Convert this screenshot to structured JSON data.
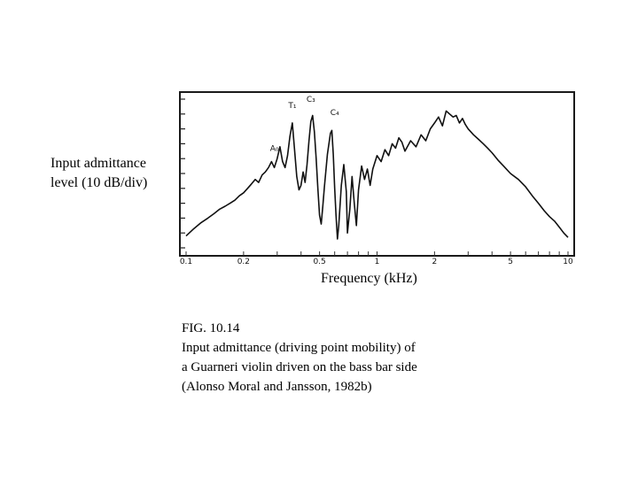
{
  "ylabel_lines": [
    "Input admittance",
    "level (10 dB/div)"
  ],
  "xlabel": "Frequency (kHz)",
  "caption": {
    "line1": "FIG. 10.14",
    "line2": "Input admittance (driving point mobility) of",
    "line3": "a Guarneri violin driven on the bass bar side",
    "line4": "(Alonso Moral and Jansson, 1982b)"
  },
  "chart_data": {
    "type": "line",
    "xscale": "log",
    "xlim": [
      0.1,
      10
    ],
    "ylim": [
      0,
      10
    ],
    "xticks": [
      {
        "value": 0.1,
        "label": "0.1"
      },
      {
        "value": 0.2,
        "label": "0.2"
      },
      {
        "value": 0.5,
        "label": "0.5"
      },
      {
        "value": 1,
        "label": "1"
      },
      {
        "value": 2,
        "label": "2"
      },
      {
        "value": 5,
        "label": "5"
      },
      {
        "value": 10,
        "label": "10"
      }
    ],
    "xlabel": "Frequency (kHz)",
    "ylabel": "Input admittance level (10 dB/div)",
    "grid": false,
    "series": [
      {
        "x": [
          0.1,
          0.11,
          0.12,
          0.13,
          0.14,
          0.15,
          0.16,
          0.17,
          0.18,
          0.19,
          0.2,
          0.21,
          0.22,
          0.23,
          0.24,
          0.25,
          0.26,
          0.27,
          0.28,
          0.29,
          0.3,
          0.31,
          0.32,
          0.33,
          0.34,
          0.35,
          0.36,
          0.37,
          0.38,
          0.39,
          0.4,
          0.41,
          0.42,
          0.43,
          0.44,
          0.45,
          0.46,
          0.47,
          0.48,
          0.49,
          0.5,
          0.51,
          0.52,
          0.53,
          0.54,
          0.55,
          0.57,
          0.58,
          0.59,
          0.6,
          0.61,
          0.62,
          0.63,
          0.65,
          0.67,
          0.69,
          0.7,
          0.72,
          0.74,
          0.76,
          0.78,
          0.8,
          0.83,
          0.86,
          0.89,
          0.92,
          0.95,
          1.0,
          1.05,
          1.1,
          1.15,
          1.2,
          1.25,
          1.3,
          1.35,
          1.4,
          1.5,
          1.6,
          1.7,
          1.8,
          1.9,
          2.0,
          2.1,
          2.2,
          2.3,
          2.4,
          2.5,
          2.6,
          2.7,
          2.8,
          2.9,
          3.0,
          3.2,
          3.4,
          3.6,
          3.8,
          4.0,
          4.3,
          4.6,
          5.0,
          5.5,
          6.0,
          6.5,
          7.0,
          7.5,
          8.0,
          8.5,
          9.0,
          9.5,
          10.0
        ],
        "y": [
          0.8,
          1.3,
          1.7,
          2.0,
          2.3,
          2.6,
          2.8,
          3.0,
          3.2,
          3.5,
          3.7,
          4.0,
          4.3,
          4.6,
          4.4,
          4.9,
          5.1,
          5.4,
          5.8,
          5.4,
          6.0,
          6.8,
          5.8,
          5.4,
          6.2,
          7.5,
          8.4,
          6.6,
          4.8,
          3.9,
          4.2,
          5.1,
          4.4,
          5.6,
          7.2,
          8.5,
          8.9,
          7.8,
          6.0,
          4.0,
          2.2,
          1.6,
          2.8,
          4.1,
          5.2,
          6.3,
          7.7,
          7.9,
          6.3,
          4.0,
          2.2,
          0.6,
          1.5,
          4.2,
          5.6,
          3.8,
          1.0,
          2.6,
          4.8,
          3.0,
          1.5,
          3.9,
          5.5,
          4.6,
          5.3,
          4.2,
          5.3,
          6.2,
          5.8,
          6.6,
          6.2,
          7.0,
          6.7,
          7.4,
          7.1,
          6.5,
          7.2,
          6.8,
          7.6,
          7.2,
          8.0,
          8.4,
          8.8,
          8.2,
          9.2,
          9.0,
          8.8,
          8.9,
          8.4,
          8.7,
          8.3,
          8.0,
          7.6,
          7.3,
          7.0,
          6.7,
          6.4,
          5.9,
          5.5,
          5.0,
          4.6,
          4.1,
          3.5,
          3.0,
          2.5,
          2.1,
          1.8,
          1.4,
          1.0,
          0.7
        ]
      }
    ],
    "annotations": [
      {
        "label": "A₀",
        "x": 0.29,
        "y": 6.4
      },
      {
        "label": "T₁",
        "x": 0.36,
        "y": 9.3
      },
      {
        "label": "C₃",
        "x": 0.45,
        "y": 9.7
      },
      {
        "label": "C₄",
        "x": 0.6,
        "y": 8.8
      }
    ]
  }
}
